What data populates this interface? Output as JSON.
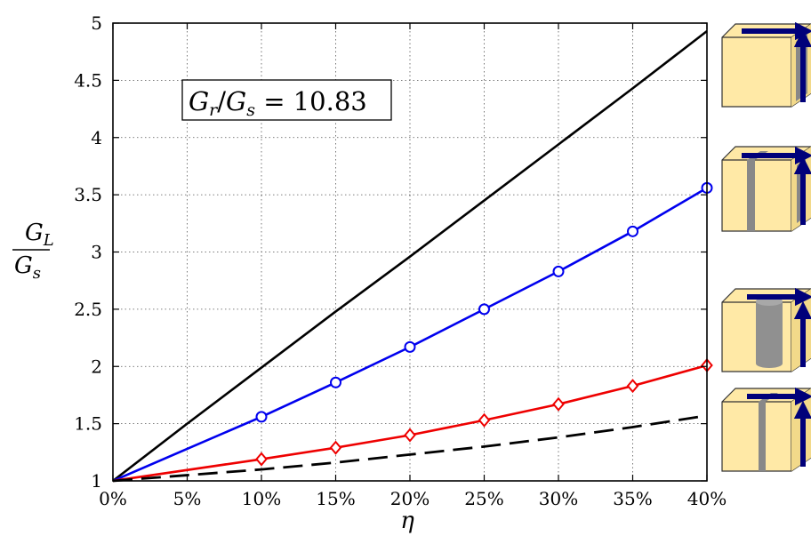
{
  "chart_data": {
    "type": "line",
    "xlabel": "η",
    "ylabel": {
      "numerator": "G",
      "numerator_sub": "L",
      "denominator": "G",
      "denominator_sub": "s"
    },
    "xlim": [
      0,
      40
    ],
    "ylim": [
      1,
      5
    ],
    "x_ticks": [
      0,
      5,
      10,
      15,
      20,
      25,
      30,
      35,
      40
    ],
    "x_tick_labels": [
      "0%",
      "5%",
      "10%",
      "15%",
      "20%",
      "25%",
      "30%",
      "35%",
      "40%"
    ],
    "y_ticks": [
      1,
      1.5,
      2,
      2.5,
      3,
      3.5,
      4,
      4.5,
      5
    ],
    "y_tick_labels": [
      "1",
      "1.5",
      "2",
      "2.5",
      "3",
      "3.5",
      "4",
      "4.5",
      "5"
    ],
    "grid": true,
    "annotation": {
      "lhs_num": "G",
      "lhs_num_sub": "r",
      "lhs_den": "G",
      "lhs_den_sub": "s",
      "value": "10.83"
    },
    "series": [
      {
        "style": "solid",
        "marker": "none",
        "color": "#000000",
        "x": [
          0,
          5,
          10,
          15,
          20,
          25,
          30,
          35,
          40
        ],
        "y": [
          1,
          1.5,
          1.99,
          2.48,
          2.96,
          3.45,
          3.94,
          4.43,
          4.93
        ]
      },
      {
        "style": "solid",
        "marker": "circle",
        "color": "#0000ee",
        "x": [
          0,
          10,
          15,
          20,
          25,
          30,
          35,
          40
        ],
        "y": [
          1,
          1.56,
          1.86,
          2.17,
          2.5,
          2.83,
          3.18,
          3.56
        ]
      },
      {
        "style": "solid",
        "marker": "diamond",
        "color": "#ee0000",
        "x": [
          0,
          10,
          15,
          20,
          25,
          30,
          35,
          40
        ],
        "y": [
          1,
          1.19,
          1.29,
          1.4,
          1.53,
          1.67,
          1.83,
          2.01
        ]
      },
      {
        "style": "dashed",
        "marker": "none",
        "color": "#000000",
        "x": [
          0,
          5,
          10,
          15,
          20,
          25,
          30,
          35,
          40
        ],
        "y": [
          1,
          1.05,
          1.1,
          1.16,
          1.23,
          1.3,
          1.38,
          1.47,
          1.57
        ]
      }
    ],
    "legend_icons": [
      {
        "icon": "cube-layer-icon",
        "series_index": 0,
        "attached_to_y": 4.93
      },
      {
        "icon": "cube-two-layers-icon",
        "series_index": 1,
        "attached_to_y": 3.56
      },
      {
        "icon": "cube-cylinder-icon",
        "series_index": 2,
        "attached_to_y": 2.01
      },
      {
        "icon": "cube-thin-layer-icon",
        "series_index": 3,
        "attached_to_y": 1.57
      }
    ],
    "colors": {
      "cube_face": "#ffe9a6",
      "cube_edge": "#333333",
      "inclusion": "#888888",
      "arrow": "#00007a"
    }
  }
}
